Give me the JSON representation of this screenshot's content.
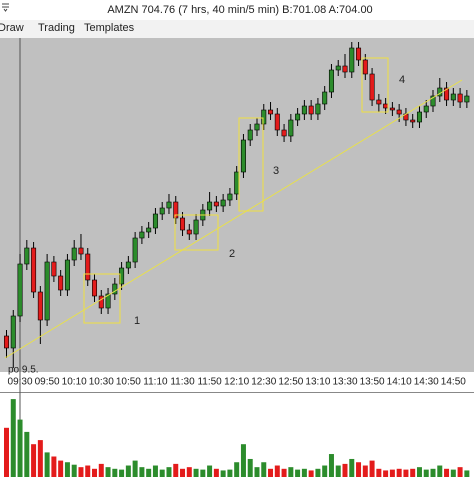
{
  "window": {
    "title": "AMZN 704.76 (7 hrs, 40 min/5 min) B:701.08 A:704.00"
  },
  "menu": [
    "Draw",
    "Trading",
    "Templates"
  ],
  "chart_data": {
    "type": "candlestick",
    "categories": [
      null,
      null,
      "09:30",
      null,
      null,
      null,
      "09:50",
      null,
      null,
      null,
      "10:10",
      null,
      null,
      null,
      "10:30",
      null,
      null,
      null,
      "10:50",
      null,
      null,
      null,
      "11:10",
      null,
      null,
      null,
      "11:30",
      null,
      null,
      null,
      "11:50",
      null,
      null,
      null,
      "12:10",
      null,
      null,
      null,
      "12:30",
      null,
      null,
      null,
      "12:50",
      null,
      null,
      null,
      "13:10",
      null,
      null,
      null,
      "13:30",
      null,
      null,
      null,
      "13:50",
      null,
      null,
      null,
      "14:10",
      null,
      null,
      null,
      "14:30",
      null,
      null,
      null,
      "14:50",
      null,
      null
    ],
    "open": [
      691.2,
      690.6,
      692.2,
      694.8,
      695.6,
      693.4,
      692.0,
      694.9,
      694.2,
      693.5,
      695.0,
      695.6,
      695.3,
      694.0,
      693.2,
      692.6,
      693.3,
      693.8,
      694.6,
      694.9,
      696.1,
      696.4,
      696.6,
      697.3,
      697.6,
      697.9,
      697.1,
      696.5,
      696.3,
      697.0,
      697.5,
      697.9,
      697.7,
      698.0,
      698.3,
      699.4,
      701.0,
      701.5,
      701.8,
      702.5,
      702.3,
      701.5,
      701.2,
      702.0,
      702.3,
      702.7,
      702.3,
      702.8,
      703.4,
      704.5,
      704.7,
      704.4,
      705.6,
      705.0,
      704.3,
      703.0,
      702.8,
      702.6,
      702.5,
      702.3,
      702.0,
      701.9,
      702.4,
      702.7,
      703.2,
      703.6,
      703.0,
      703.3,
      702.9
    ],
    "high": [
      691.5,
      692.5,
      695.3,
      696.0,
      695.9,
      693.7,
      695.3,
      695.2,
      694.5,
      695.3,
      696.0,
      696.3,
      695.6,
      694.3,
      693.5,
      693.6,
      694.1,
      694.9,
      695.2,
      696.4,
      696.7,
      696.9,
      697.6,
      697.9,
      698.3,
      698.2,
      697.4,
      696.8,
      697.3,
      697.8,
      698.4,
      698.2,
      698.3,
      698.6,
      699.7,
      701.3,
      701.8,
      702.1,
      702.8,
      702.9,
      702.6,
      701.8,
      702.3,
      702.6,
      703.0,
      703.0,
      703.1,
      703.7,
      704.8,
      705.0,
      705.3,
      705.9,
      705.9,
      705.3,
      704.6,
      703.3,
      703.1,
      702.9,
      702.8,
      702.6,
      702.3,
      702.7,
      703.0,
      703.5,
      704.1,
      703.9,
      703.6,
      703.6,
      703.5
    ],
    "low": [
      690.1,
      689.6,
      691.9,
      694.5,
      693.1,
      690.8,
      691.7,
      693.9,
      693.2,
      693.2,
      694.7,
      695.0,
      693.7,
      692.9,
      692.3,
      692.3,
      693.0,
      693.5,
      694.3,
      694.6,
      695.8,
      696.1,
      696.3,
      697.0,
      697.3,
      696.8,
      696.2,
      696.0,
      696.0,
      696.7,
      697.2,
      697.4,
      697.4,
      697.7,
      698.0,
      699.1,
      700.7,
      701.2,
      701.5,
      702.0,
      701.2,
      700.9,
      700.9,
      701.7,
      702.0,
      702.0,
      702.0,
      702.5,
      703.1,
      704.2,
      704.1,
      704.1,
      704.7,
      704.0,
      702.7,
      702.4,
      702.3,
      702.2,
      701.9,
      701.7,
      701.6,
      701.6,
      702.1,
      702.4,
      702.9,
      702.7,
      702.7,
      702.6,
      702.6
    ],
    "close": [
      690.6,
      692.2,
      694.8,
      695.6,
      693.4,
      692.0,
      694.9,
      694.2,
      693.5,
      695.0,
      695.6,
      695.3,
      694.0,
      693.2,
      692.6,
      693.3,
      693.8,
      694.6,
      694.9,
      696.1,
      696.4,
      696.6,
      697.3,
      697.6,
      697.9,
      697.1,
      696.5,
      696.3,
      697.0,
      697.5,
      697.9,
      697.7,
      698.0,
      698.3,
      699.4,
      701.0,
      701.5,
      701.8,
      702.5,
      702.3,
      701.5,
      701.2,
      702.0,
      702.3,
      702.7,
      702.3,
      702.8,
      703.4,
      704.5,
      704.7,
      704.4,
      705.6,
      705.0,
      704.3,
      703.0,
      702.8,
      702.6,
      702.5,
      702.3,
      702.0,
      701.9,
      702.4,
      702.7,
      703.2,
      703.6,
      703.0,
      703.3,
      702.9,
      703.2
    ],
    "volume": [
      60,
      95,
      70,
      55,
      40,
      45,
      30,
      25,
      20,
      18,
      15,
      12,
      14,
      10,
      16,
      12,
      10,
      9,
      14,
      20,
      12,
      10,
      14,
      9,
      12,
      16,
      10,
      12,
      10,
      9,
      14,
      10,
      8,
      9,
      18,
      40,
      22,
      12,
      18,
      10,
      14,
      10,
      12,
      9,
      10,
      8,
      10,
      14,
      28,
      14,
      16,
      22,
      18,
      14,
      20,
      10,
      8,
      9,
      10,
      9,
      10,
      12,
      9,
      10,
      14,
      10,
      9,
      12,
      8
    ],
    "ylim": [
      690,
      706
    ],
    "volume_ylim": [
      0,
      100
    ],
    "up_color": "#2c8c2c",
    "down_color": "#e31b1b",
    "annotations": [
      "1",
      "2",
      "3",
      "4"
    ],
    "note": "po 9.5."
  }
}
